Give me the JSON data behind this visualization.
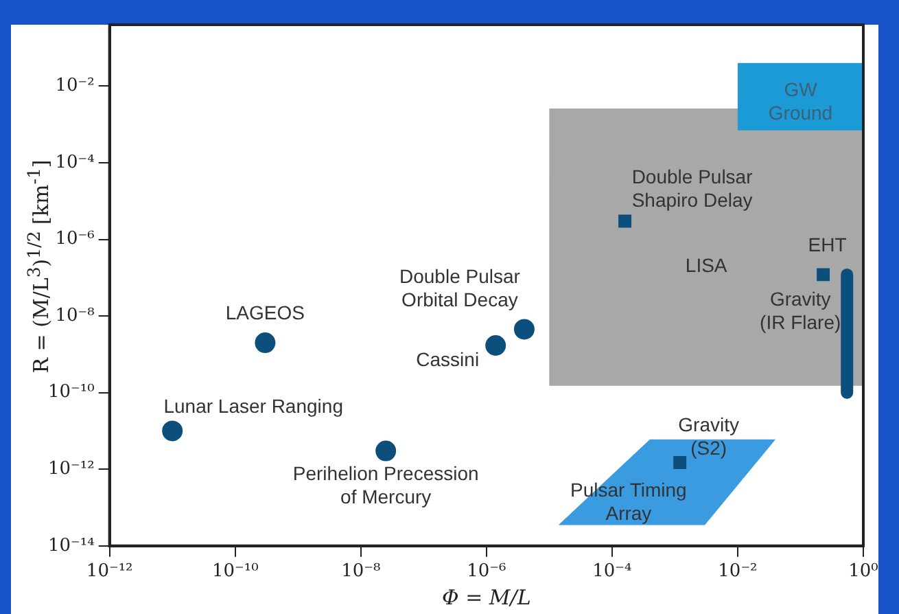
{
  "chart_data": {
    "type": "scatter",
    "xlabel": "Φ = M/L",
    "ylabel": "R = (M/L$^{3}$)$^{1/2}$ [km$^{-1}$]",
    "log": "xy",
    "grid": false,
    "legend": false,
    "xlim": [
      1e-12,
      1
    ],
    "ylim": [
      1e-14,
      0.4
    ],
    "xticks": [
      {
        "value": 1e-12,
        "label": "10⁻¹²"
      },
      {
        "value": 1e-10,
        "label": "10⁻¹⁰"
      },
      {
        "value": 1e-08,
        "label": "10⁻⁸"
      },
      {
        "value": 1e-06,
        "label": "10⁻⁶"
      },
      {
        "value": 0.0001,
        "label": "10⁻⁴"
      },
      {
        "value": 0.01,
        "label": "10⁻²"
      },
      {
        "value": 1,
        "label": "10⁰"
      }
    ],
    "yticks": [
      {
        "value": 1e-14,
        "label": "10⁻¹⁴"
      },
      {
        "value": 1e-12,
        "label": "10⁻¹²"
      },
      {
        "value": 1e-10,
        "label": "10⁻¹⁰"
      },
      {
        "value": 1e-08,
        "label": "10⁻⁸"
      },
      {
        "value": 1e-06,
        "label": "10⁻⁶"
      },
      {
        "value": 0.0001,
        "label": "10⁻⁴"
      },
      {
        "value": 0.01,
        "label": "10⁻²"
      }
    ],
    "series": [
      {
        "type": "area",
        "name": "LISA",
        "color": "#a8a8a8",
        "x": [
          1e-05,
          1,
          1,
          1e-05
        ],
        "values": [
          0.0026,
          0.0026,
          1.5e-10,
          1.5e-10
        ]
      },
      {
        "type": "area",
        "name": "GW\nGround",
        "color": "#1b9ad6",
        "x": [
          0.01,
          1,
          1,
          0.01
        ],
        "values": [
          0.04,
          0.04,
          0.0007,
          0.0007
        ]
      },
      {
        "type": "area",
        "name": "Pulsar Timing\nArray",
        "color": "#3b9be0",
        "x": [
          1.4e-05,
          0.0004,
          0.04,
          0.003
        ],
        "values": [
          3.5e-14,
          6e-12,
          6e-12,
          3.5e-14
        ]
      },
      {
        "marker": "circle",
        "name": "Lunar Laser Ranging",
        "color": "#0d4f7c",
        "x": [
          1e-11
        ],
        "values": [
          1e-11
        ]
      },
      {
        "marker": "circle",
        "name": "LAGEOS",
        "color": "#0d4f7c",
        "x": [
          3e-10
        ],
        "values": [
          2e-09
        ]
      },
      {
        "marker": "circle",
        "name": "Perihelion Precession\nof Mercury",
        "color": "#0d4f7c",
        "x": [
          2.5e-08
        ],
        "values": [
          3e-12
        ]
      },
      {
        "marker": "circle",
        "name": "Cassini",
        "color": "#0d4f7c",
        "x": [
          1.4e-06
        ],
        "values": [
          1.7e-09
        ]
      },
      {
        "marker": "circle",
        "name": "Double Pulsar\nOrbital Decay",
        "color": "#0d4f7c",
        "x": [
          4e-06
        ],
        "values": [
          4.5e-09
        ]
      },
      {
        "marker": "square",
        "name": "Double Pulsar\nShapiro Delay",
        "color": "#0d4f7c",
        "x": [
          0.00016
        ],
        "values": [
          3e-06
        ]
      },
      {
        "marker": "square",
        "name": "EHT",
        "color": "#0d4f7c",
        "x": [
          0.23
        ],
        "values": [
          1.2e-07
        ]
      },
      {
        "type": "line",
        "marker": "none",
        "name": "Gravity\n(IR Flare)",
        "color": "#0d4f7c",
        "x": [
          0.55,
          0.55
        ],
        "values": [
          1.2e-07,
          1e-10
        ]
      },
      {
        "marker": "square",
        "name": "Gravity\n(S2)",
        "color": "#0d4f7c",
        "x": [
          0.0012
        ],
        "values": [
          1.5e-12
        ]
      }
    ]
  }
}
